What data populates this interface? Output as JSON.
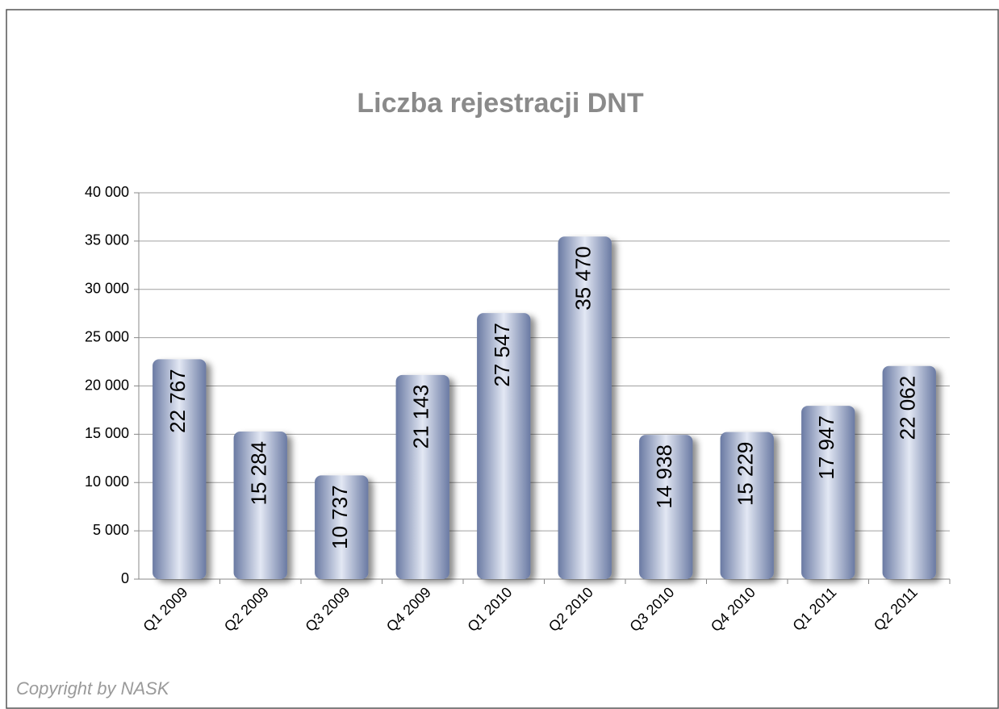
{
  "chart_data": {
    "type": "bar",
    "title": "Liczba rejestracji DNT",
    "categories": [
      "Q1 2009",
      "Q2 2009",
      "Q3 2009",
      "Q4 2009",
      "Q1 2010",
      "Q2 2010",
      "Q3 2010",
      "Q4 2010",
      "Q1 2011",
      "Q2 2011"
    ],
    "values": [
      22767,
      15284,
      10737,
      21143,
      27547,
      35470,
      14938,
      15229,
      17947,
      22062
    ],
    "value_labels": [
      "22 767",
      "15 284",
      "10 737",
      "21 143",
      "27 547",
      "35 470",
      "14 938",
      "15 229",
      "17 947",
      "22 062"
    ],
    "color": "#7f8fb5",
    "ylim": [
      0,
      40000
    ],
    "yticks": [
      0,
      {
        "value": 5000,
        "label": "5 000"
      },
      {
        "value": 10000,
        "label": "10 000"
      },
      {
        "value": 15000,
        "label": "15 000"
      },
      {
        "value": 20000,
        "label": "20 000"
      },
      {
        "value": 25000,
        "label": "25 000"
      },
      {
        "value": 30000,
        "label": "30 000"
      },
      {
        "value": 35000,
        "label": "35 000"
      },
      {
        "value": 40000,
        "label": "40 000"
      }
    ],
    "grid": true,
    "annotation": "Copyright by NASK"
  }
}
